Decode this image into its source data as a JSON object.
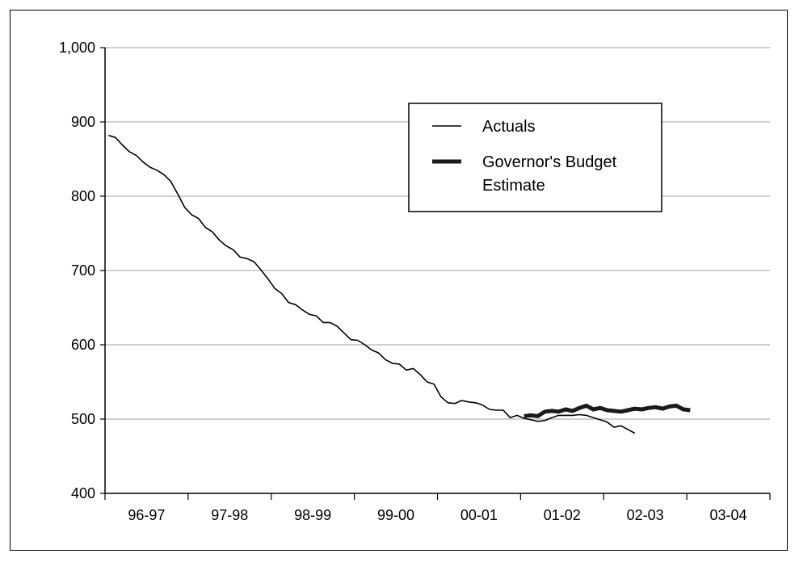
{
  "chart_data": {
    "type": "line",
    "y_ticks": [
      "400",
      "500",
      "600",
      "700",
      "800",
      "900",
      "1,000"
    ],
    "ylim": [
      400,
      1000
    ],
    "x_tick_labels": [
      "96-97",
      "97-98",
      "98-99",
      "99-00",
      "00-01",
      "01-02",
      "02-03",
      "03-04"
    ],
    "grid": "horizontal",
    "legend_position": "top-right",
    "series": [
      {
        "name": "Actuals",
        "style": "thin",
        "color": "#000000",
        "x_start": 0,
        "values": [
          882,
          879,
          869,
          860,
          855,
          846,
          839,
          835,
          829,
          820,
          803,
          785,
          775,
          770,
          758,
          752,
          741,
          733,
          728,
          718,
          716,
          712,
          701,
          689,
          676,
          669,
          657,
          654,
          647,
          641,
          639,
          630,
          630,
          625,
          616,
          607,
          606,
          600,
          593,
          589,
          580,
          575,
          574,
          566,
          568,
          560,
          550,
          547,
          530,
          522,
          521,
          525,
          523,
          522,
          519,
          513,
          512,
          512,
          502,
          505,
          501,
          499,
          497,
          498,
          502,
          505,
          505,
          505,
          506,
          505,
          502,
          499,
          496,
          489,
          491,
          486,
          481
        ],
        "values_step": 1
      },
      {
        "name": "Governor's Budget Estimate",
        "style": "thick",
        "color": "#1a1a1a",
        "x_start": 60,
        "values_step": 1,
        "values": [
          504,
          505,
          504,
          510,
          511,
          510,
          513,
          511,
          515,
          518,
          513,
          515,
          512,
          511,
          510,
          512,
          514,
          513,
          515,
          516,
          514,
          517,
          518,
          513,
          512
        ]
      }
    ]
  },
  "legend": {
    "items": [
      {
        "label_lines": [
          "Actuals"
        ]
      },
      {
        "label_lines": [
          "Governor's Budget",
          "Estimate"
        ]
      }
    ]
  }
}
